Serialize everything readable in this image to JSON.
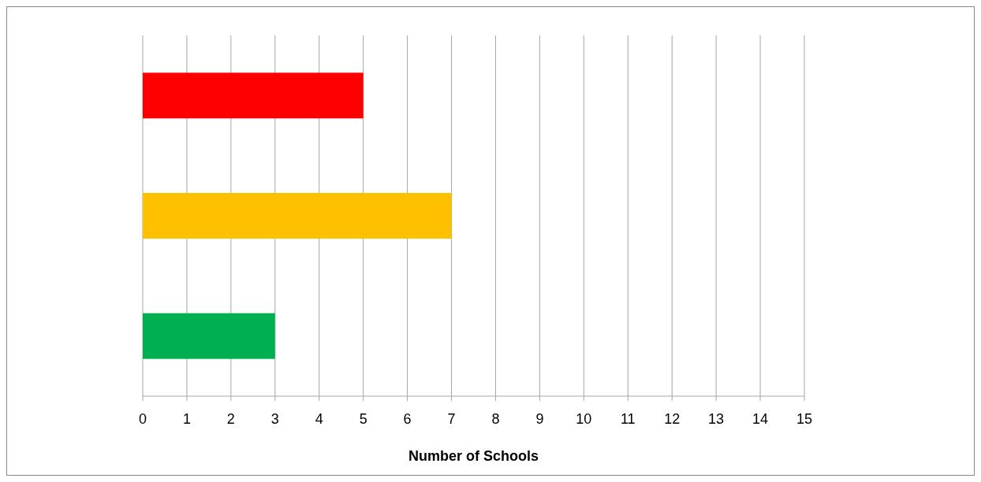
{
  "chart_data": {
    "type": "bar",
    "orientation": "horizontal",
    "categories": [
      null,
      null,
      null
    ],
    "values": [
      5,
      7,
      3
    ],
    "colors": [
      "#ff0000",
      "#ffc000",
      "#00b050"
    ],
    "xlabel": "Number of Schools",
    "xlim": [
      0,
      15
    ],
    "xticks": [
      0,
      1,
      2,
      3,
      4,
      5,
      6,
      7,
      8,
      9,
      10,
      11,
      12,
      13,
      14,
      15
    ],
    "grid": "x"
  }
}
